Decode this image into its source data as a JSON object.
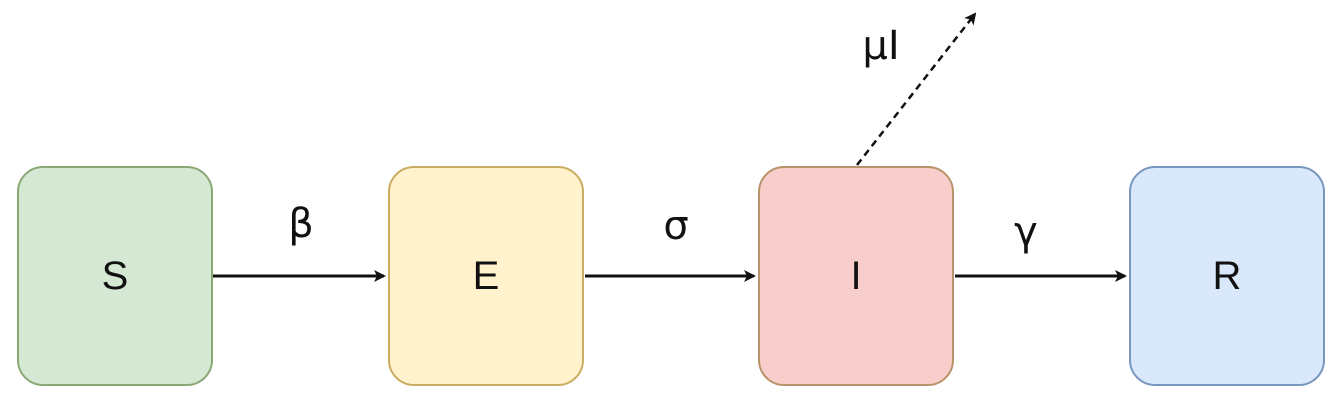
{
  "nodes": [
    {
      "id": "S",
      "label": "S",
      "fill": "#d5e8d4",
      "stroke": "#8aa876"
    },
    {
      "id": "E",
      "label": "E",
      "fill": "#fff2cc",
      "stroke": "#c9ad60"
    },
    {
      "id": "I",
      "label": "I",
      "fill": "#f8cecc",
      "stroke": "#b8946a"
    },
    {
      "id": "R",
      "label": "R",
      "fill": "#dae8fc",
      "stroke": "#7797bd"
    }
  ],
  "edges": [
    {
      "from": "S",
      "to": "E",
      "label": "β",
      "style": "solid"
    },
    {
      "from": "E",
      "to": "I",
      "label": "σ",
      "style": "solid"
    },
    {
      "from": "I",
      "to": "R",
      "label": "γ",
      "style": "solid"
    },
    {
      "from": "I",
      "to": "outflow",
      "label": "μI",
      "style": "dashed"
    }
  ],
  "line_color": "#111111"
}
